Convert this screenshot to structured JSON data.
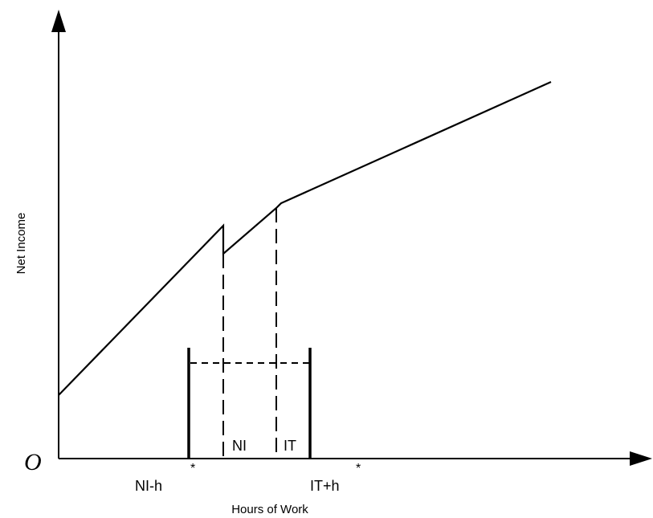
{
  "labels": {
    "origin": "O",
    "y_axis": "Net Income",
    "x_axis": "Hours of Work",
    "ni": "NI",
    "it": "IT",
    "ni_minus_h": "NI-h",
    "ni_minus_h_star": "*",
    "it_plus_h": "IT+h",
    "it_plus_h_star": "*"
  },
  "colors": {
    "line": "#000000",
    "background": "#ffffff"
  }
}
